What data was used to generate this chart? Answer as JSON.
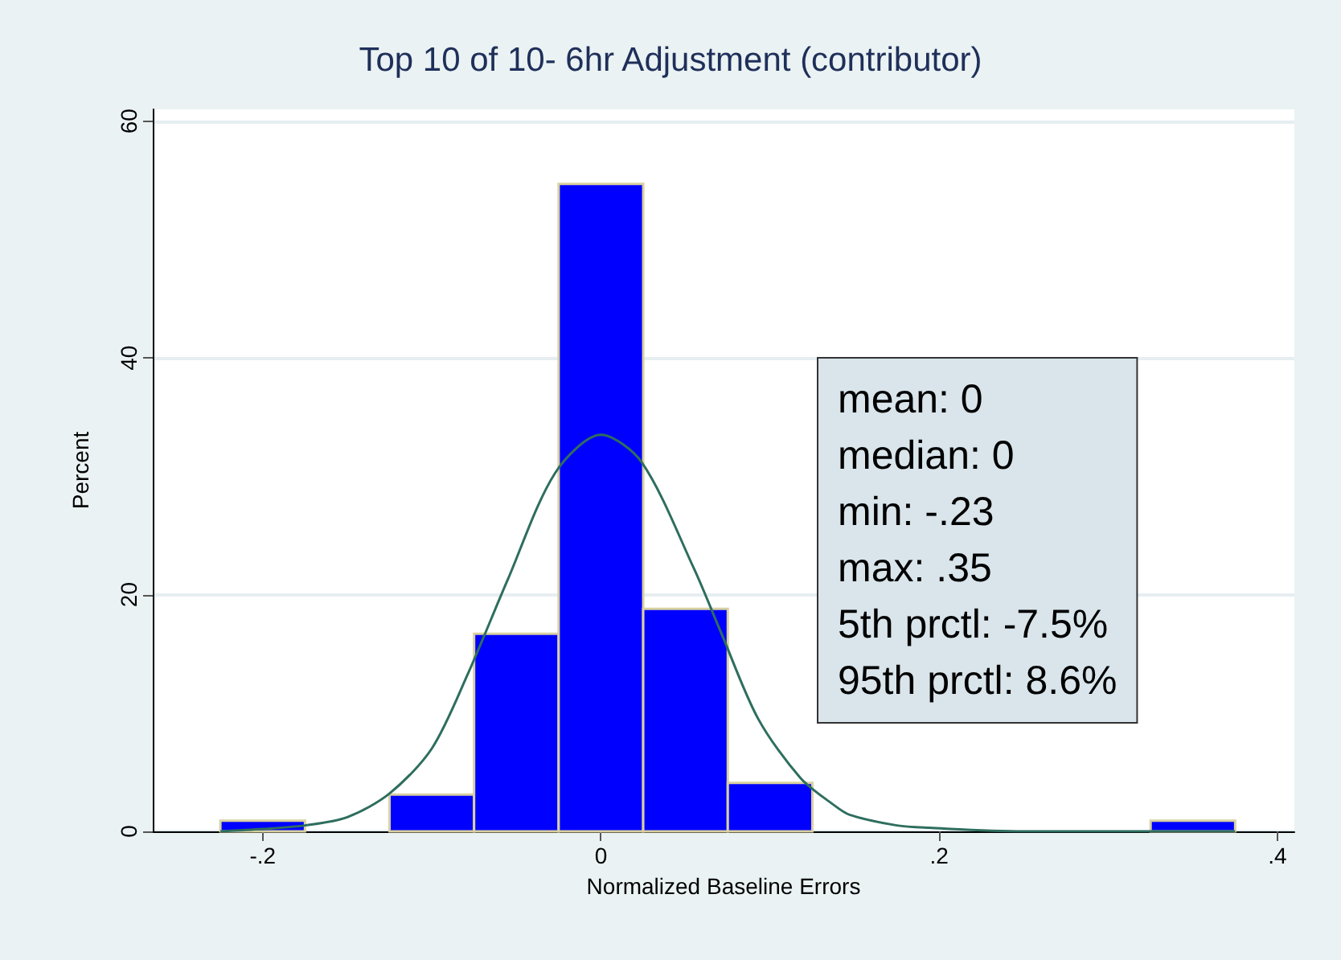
{
  "chart_data": {
    "type": "histogram",
    "title": "Top 10 of 10- 6hr Adjustment (contributor)",
    "xlabel": "Normalized Baseline Errors",
    "ylabel": "Percent",
    "bins": [
      -0.225,
      -0.175,
      -0.125,
      -0.075,
      -0.025,
      0.025,
      0.075,
      0.125,
      0.175,
      0.225,
      0.275,
      0.325,
      0.375
    ],
    "values": [
      0.9,
      0,
      3.1,
      16.7,
      54.7,
      18.8,
      4.1,
      0,
      0,
      0,
      0,
      0.9
    ],
    "color": "#0000ff",
    "series": [
      {
        "type": "line",
        "color": "#2e6e5e",
        "x": [
          -0.225,
          -0.2,
          -0.175,
          -0.15,
          -0.125,
          -0.1,
          -0.079,
          -0.055,
          -0.027,
          0,
          0.024,
          0.055,
          0.071,
          0.093,
          0.118,
          0.137,
          0.147,
          0.175,
          0.194,
          0.25,
          0.3,
          0.375
        ],
        "values": [
          0,
          0.2,
          0.5,
          1.2,
          3.2,
          7,
          13.2,
          21.3,
          30.3,
          33.5,
          31.2,
          22.2,
          16.8,
          9.5,
          4.5,
          2.3,
          1.4,
          0.5,
          0.3,
          0,
          0,
          0
        ]
      }
    ],
    "xlim": [
      -0.265,
      0.41
    ],
    "xticks": [
      {
        "value": -0.2,
        "label": "-.2"
      },
      0,
      {
        "value": 0.2,
        "label": ".2"
      },
      {
        "value": 0.4,
        "label": ".4"
      }
    ],
    "ylim": [
      0,
      61
    ],
    "yticks": [
      0,
      20,
      40,
      60
    ],
    "grid": "y",
    "marker": "none",
    "line_style": "solid",
    "annotations": [
      "mean: 0",
      "median: 0",
      "min: -.23",
      "max: .35",
      "5th prctl: -7.5%",
      "95th prctl: 8.6%"
    ]
  }
}
